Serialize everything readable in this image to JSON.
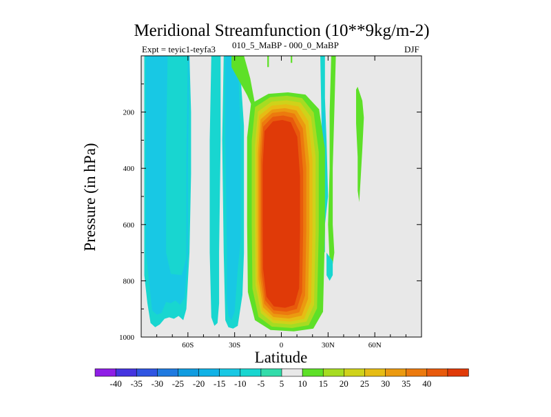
{
  "chart_data": {
    "type": "contour",
    "title": "Meridional Streamfunction (10**9kg/m-2)",
    "subtitle_left_a": "Expt = teyic1-teyfa3",
    "subtitle_left_b": "010_5_MaBP - 000_0_MaBP",
    "season": "DJF",
    "xlabel": "Latitude",
    "ylabel": "Pressure (in hPa)",
    "xlim": [
      -90,
      90
    ],
    "ylim": [
      1000,
      0
    ],
    "x_ticks": [
      {
        "value": -60,
        "label": "60S"
      },
      {
        "value": -30,
        "label": "30S"
      },
      {
        "value": 0,
        "label": "0"
      },
      {
        "value": 30,
        "label": "30N"
      },
      {
        "value": 60,
        "label": "60N"
      }
    ],
    "y_ticks": [
      {
        "value": 200,
        "label": "200"
      },
      {
        "value": 400,
        "label": "400"
      },
      {
        "value": 600,
        "label": "600"
      },
      {
        "value": 800,
        "label": "800"
      },
      {
        "value": 1000,
        "label": "1000"
      }
    ],
    "contour_levels": [
      -40,
      -35,
      -30,
      -25,
      -20,
      -15,
      -10,
      -5,
      5,
      10,
      15,
      20,
      25,
      30,
      35,
      40
    ],
    "level_colors": [
      "#8f1ee6",
      "#4535e0",
      "#2f55e2",
      "#1f7ae0",
      "#109ce0",
      "#10b2e6",
      "#18c8e4",
      "#18d6d0",
      "#32dcaa",
      "#e8e8e8",
      "#5ee028",
      "#a6dc22",
      "#cfd21a",
      "#e6bc14",
      "#eb9a10",
      "#ec7a0e",
      "#e85a0c",
      "#e03a08"
    ],
    "features": [
      {
        "name": "polar-negative-band",
        "lat_range": [
          -88,
          -57
        ],
        "pressure_range": [
          0,
          965
        ],
        "min_value": -10
      },
      {
        "name": "midlat-negative-band",
        "lat_range": [
          -45,
          -25
        ],
        "pressure_range": [
          0,
          965
        ],
        "min_value": -10
      },
      {
        "name": "hadley-cell-positive",
        "lat_range": [
          -22,
          28
        ],
        "pressure_range": [
          130,
          980
        ],
        "max_value": 40
      },
      {
        "name": "positive-strip-north",
        "lat_range": [
          48,
          52
        ],
        "pressure_range": [
          120,
          520
        ],
        "max_value": 10
      }
    ]
  }
}
